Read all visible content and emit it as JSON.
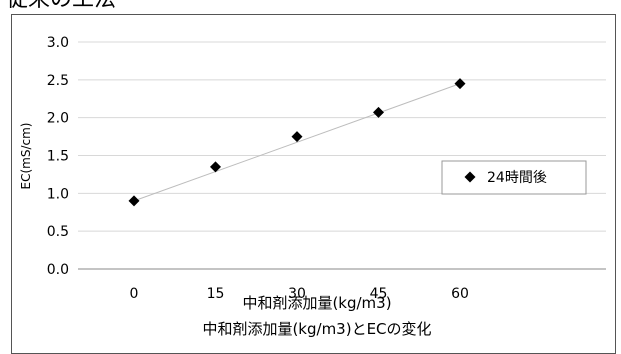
{
  "heading": "従来の工法",
  "chart_data": {
    "type": "scatter",
    "title": "中和剤添加量(kg/m3)とECの変化",
    "xlabel": "中和剤添加量(kg/m3)",
    "ylabel": "EC(mS/cm)",
    "x": [
      0,
      15,
      30,
      45,
      60
    ],
    "xticks": [
      "0",
      "15",
      "30",
      "45",
      "60"
    ],
    "yticks": [
      "0.0",
      "0.5",
      "1.0",
      "1.5",
      "2.0",
      "2.5",
      "3.0"
    ],
    "ylim": [
      0,
      3.0
    ],
    "grid": true,
    "legend": "right",
    "trendline": true,
    "series": [
      {
        "name": "24時間後",
        "color": "#000000",
        "values": [
          0.9,
          1.35,
          1.75,
          2.07,
          2.45
        ]
      }
    ]
  }
}
